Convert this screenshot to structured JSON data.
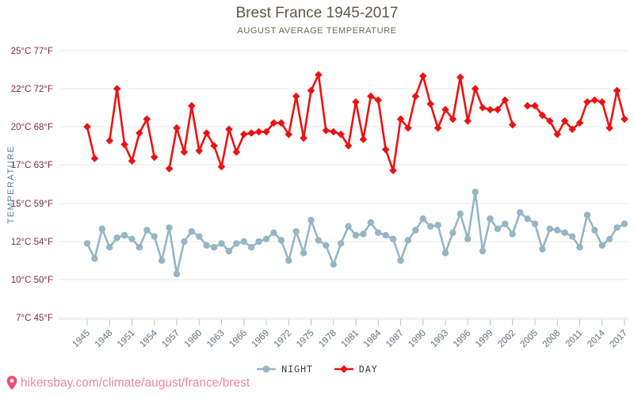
{
  "header": {
    "title": "Brest France 1945-2017",
    "subtitle": "AUGUST AVERAGE TEMPERATURE"
  },
  "chart_data": {
    "type": "line",
    "title": "Brest France 1945-2017",
    "subtitle": "AUGUST AVERAGE TEMPERATURE",
    "ylabel": "TEMPERATURE",
    "xlabel": "",
    "grid": true,
    "legend_position": "bottom",
    "y_ticks": [
      {
        "c": 25,
        "f": 77
      },
      {
        "c": 22,
        "f": 72
      },
      {
        "c": 20,
        "f": 68
      },
      {
        "c": 17,
        "f": 63
      },
      {
        "c": 15,
        "f": 59
      },
      {
        "c": 12,
        "f": 54
      },
      {
        "c": 10,
        "f": 50
      },
      {
        "c": 7,
        "f": 45
      }
    ],
    "x_tick_years": [
      1945,
      1948,
      1951,
      1954,
      1957,
      1960,
      1963,
      1966,
      1969,
      1972,
      1975,
      1978,
      1981,
      1984,
      1987,
      1990,
      1993,
      1996,
      1999,
      2002,
      2005,
      2008,
      2011,
      2014,
      2017
    ],
    "x": [
      1945,
      1946,
      1947,
      1948,
      1949,
      1950,
      1951,
      1952,
      1953,
      1954,
      1955,
      1956,
      1957,
      1958,
      1959,
      1960,
      1961,
      1962,
      1963,
      1964,
      1965,
      1966,
      1967,
      1968,
      1969,
      1970,
      1971,
      1972,
      1973,
      1974,
      1975,
      1976,
      1977,
      1978,
      1979,
      1980,
      1981,
      1982,
      1983,
      1984,
      1985,
      1986,
      1987,
      1988,
      1989,
      1990,
      1991,
      1992,
      1993,
      1994,
      1995,
      1996,
      1997,
      1998,
      1999,
      2000,
      2001,
      2002,
      2003,
      2004,
      2005,
      2006,
      2007,
      2008,
      2009,
      2010,
      2011,
      2012,
      2013,
      2014,
      2015,
      2016,
      2017
    ],
    "series": [
      {
        "name": "NIGHT",
        "color": "#95b6c4",
        "marker": "circle",
        "values": [
          11.9,
          11.1,
          13.0,
          11.7,
          12.3,
          12.5,
          12.2,
          11.7,
          12.9,
          12.4,
          11.0,
          13.1,
          10.3,
          12.0,
          12.8,
          12.4,
          11.8,
          11.7,
          11.9,
          11.5,
          11.9,
          12.0,
          11.7,
          12.0,
          12.2,
          12.7,
          12.1,
          11.0,
          12.8,
          11.4,
          13.7,
          12.1,
          11.8,
          10.8,
          11.9,
          13.2,
          12.5,
          12.6,
          13.5,
          12.7,
          12.5,
          12.2,
          11.0,
          12.1,
          12.9,
          13.8,
          13.2,
          13.3,
          11.4,
          12.7,
          14.2,
          12.2,
          15.6,
          11.5,
          13.8,
          13.0,
          13.4,
          12.6,
          14.3,
          13.8,
          13.4,
          11.6,
          13.0,
          12.9,
          12.7,
          12.4,
          11.7,
          14.1,
          12.9,
          11.8,
          12.2,
          13.1,
          13.4
        ]
      },
      {
        "name": "DAY",
        "color": "#ec1212",
        "marker": "diamond",
        "values": [
          20.0,
          17.5,
          null,
          18.9,
          22.0,
          18.6,
          17.3,
          19.5,
          20.4,
          17.6,
          null,
          16.8,
          19.9,
          18.0,
          21.1,
          18.1,
          19.5,
          18.5,
          16.9,
          19.8,
          18.0,
          19.4,
          19.5,
          19.6,
          19.6,
          20.2,
          20.2,
          19.4,
          21.6,
          19.1,
          21.9,
          23.1,
          19.7,
          19.6,
          19.4,
          18.5,
          21.3,
          19.0,
          21.6,
          21.4,
          18.2,
          16.7,
          20.4,
          19.9,
          21.6,
          23.0,
          21.2,
          19.9,
          20.9,
          20.4,
          22.9,
          20.3,
          22.0,
          21.0,
          20.9,
          20.9,
          21.4,
          20.1,
          null,
          21.1,
          21.1,
          20.6,
          20.3,
          19.4,
          20.3,
          19.8,
          20.2,
          21.3,
          21.4,
          21.3,
          19.9,
          21.9,
          20.4
        ]
      }
    ]
  },
  "footer": {
    "url": "hikersbay.com/climate/august/france/brest"
  },
  "colors": {
    "day": "#ec1212",
    "night": "#95b6c4",
    "y_tick_label": "#7e2c3e",
    "x_tick_label": "#5e7082",
    "ylabel": "#5a7d90",
    "gridline": "#e8e8e8",
    "axis_line": "#dbe0e5",
    "tick_mark": "#b3c2d1",
    "url_text": "#f083aa",
    "pin": "#ef4a7b"
  }
}
